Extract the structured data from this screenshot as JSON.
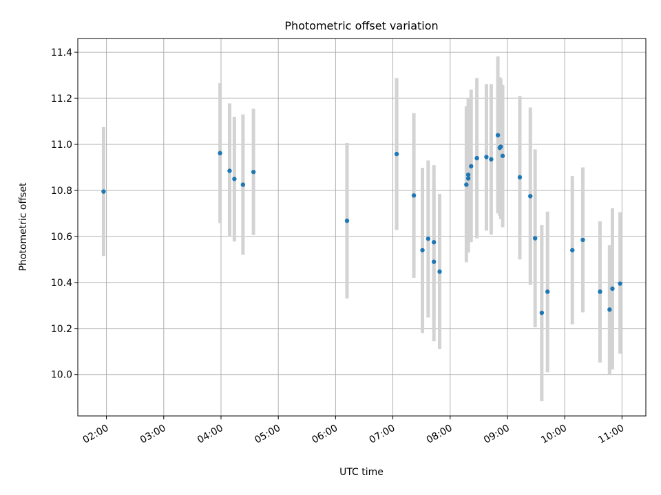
{
  "chart_data": {
    "type": "scatter",
    "title": "Photometric offset variation",
    "xlabel": "UTC time",
    "ylabel": "Photometric offset",
    "x_axis": {
      "kind": "time",
      "range": [
        "01:30",
        "11:25"
      ],
      "ticks": [
        "02:00",
        "03:00",
        "04:00",
        "05:00",
        "06:00",
        "07:00",
        "08:00",
        "09:00",
        "10:00",
        "11:00"
      ]
    },
    "y_axis": {
      "range": [
        9.82,
        11.46
      ],
      "ticks": [
        "10.0",
        "10.2",
        "10.4",
        "10.6",
        "10.8",
        "11.0",
        "11.2",
        "11.4"
      ]
    },
    "grid": true,
    "legend": "none",
    "colors": {
      "point": "#1f77b4",
      "errorbar": "#d3d3d3",
      "grid": "#b0b0b0"
    },
    "points": [
      {
        "time": "01:57",
        "y": 10.795,
        "low": 10.515,
        "high": 11.075
      },
      {
        "time": "03:59",
        "y": 10.962,
        "low": 10.658,
        "high": 11.266
      },
      {
        "time": "04:09",
        "y": 10.885,
        "low": 10.598,
        "high": 11.178
      },
      {
        "time": "04:14",
        "y": 10.85,
        "low": 10.578,
        "high": 11.12
      },
      {
        "time": "04:23",
        "y": 10.825,
        "low": 10.52,
        "high": 11.13
      },
      {
        "time": "04:34",
        "y": 10.88,
        "low": 10.606,
        "high": 11.155
      },
      {
        "time": "06:12",
        "y": 10.668,
        "low": 10.33,
        "high": 11.006
      },
      {
        "time": "07:04",
        "y": 10.958,
        "low": 10.628,
        "high": 11.288
      },
      {
        "time": "07:22",
        "y": 10.778,
        "low": 10.42,
        "high": 11.136
      },
      {
        "time": "07:31",
        "y": 10.54,
        "low": 10.18,
        "high": 10.898
      },
      {
        "time": "07:37",
        "y": 10.59,
        "low": 10.248,
        "high": 10.93
      },
      {
        "time": "07:43",
        "y": 10.575,
        "low": 10.24,
        "high": 10.91
      },
      {
        "time": "07:43",
        "y": 10.49,
        "low": 10.145,
        "high": 10.836
      },
      {
        "time": "07:49",
        "y": 10.447,
        "low": 10.11,
        "high": 10.785
      },
      {
        "time": "08:17",
        "y": 10.825,
        "low": 10.488,
        "high": 11.166
      },
      {
        "time": "08:19",
        "y": 10.868,
        "low": 10.535,
        "high": 11.2
      },
      {
        "time": "08:19",
        "y": 10.852,
        "low": 10.53,
        "high": 11.178
      },
      {
        "time": "08:22",
        "y": 10.905,
        "low": 10.575,
        "high": 11.238
      },
      {
        "time": "08:28",
        "y": 10.94,
        "low": 10.592,
        "high": 11.288
      },
      {
        "time": "08:38",
        "y": 10.945,
        "low": 10.625,
        "high": 11.262
      },
      {
        "time": "08:43",
        "y": 10.935,
        "low": 10.608,
        "high": 11.262
      },
      {
        "time": "08:50",
        "y": 11.04,
        "low": 10.7,
        "high": 11.382
      },
      {
        "time": "08:52",
        "y": 10.985,
        "low": 10.69,
        "high": 11.292
      },
      {
        "time": "08:53",
        "y": 10.99,
        "low": 10.675,
        "high": 11.285
      },
      {
        "time": "08:55",
        "y": 10.95,
        "low": 10.64,
        "high": 11.258
      },
      {
        "time": "09:13",
        "y": 10.857,
        "low": 10.5,
        "high": 11.21
      },
      {
        "time": "09:24",
        "y": 10.775,
        "low": 10.39,
        "high": 11.16
      },
      {
        "time": "09:29",
        "y": 10.592,
        "low": 10.205,
        "high": 10.978
      },
      {
        "time": "09:36",
        "y": 10.268,
        "low": 9.885,
        "high": 10.65
      },
      {
        "time": "09:42",
        "y": 10.36,
        "low": 10.01,
        "high": 10.708
      },
      {
        "time": "10:08",
        "y": 10.54,
        "low": 10.218,
        "high": 10.862
      },
      {
        "time": "10:19",
        "y": 10.585,
        "low": 10.27,
        "high": 10.9
      },
      {
        "time": "10:37",
        "y": 10.36,
        "low": 10.052,
        "high": 10.666
      },
      {
        "time": "10:47",
        "y": 10.282,
        "low": 10.002,
        "high": 10.562
      },
      {
        "time": "10:50",
        "y": 10.373,
        "low": 10.022,
        "high": 10.722
      },
      {
        "time": "10:58",
        "y": 10.395,
        "low": 10.09,
        "high": 10.705
      }
    ]
  }
}
